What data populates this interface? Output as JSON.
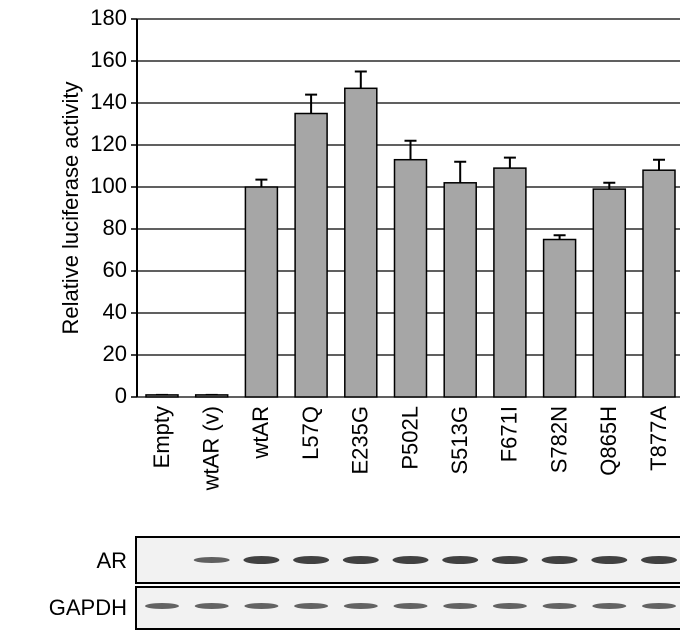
{
  "chart_data": {
    "type": "bar",
    "y_label": "Relative luciferase activity",
    "categories": [
      "Empty",
      "wtAR (v)",
      "wtAR",
      "L57Q",
      "E235G",
      "P502L",
      "S513G",
      "F671I",
      "S782N",
      "Q865H",
      "T877A"
    ],
    "values": [
      1,
      1,
      100,
      135,
      147,
      113,
      102,
      109,
      75,
      99,
      108
    ],
    "errors": [
      0,
      0,
      3.5,
      9,
      8,
      9,
      10,
      5,
      2,
      3,
      5
    ],
    "color": "#a6a6a6",
    "ylim": [
      0,
      180
    ],
    "yticks": [
      0,
      20,
      40,
      60,
      80,
      100,
      120,
      140,
      160,
      180
    ],
    "grid": true,
    "blot_labels": [
      "AR",
      "GAPDH"
    ]
  }
}
